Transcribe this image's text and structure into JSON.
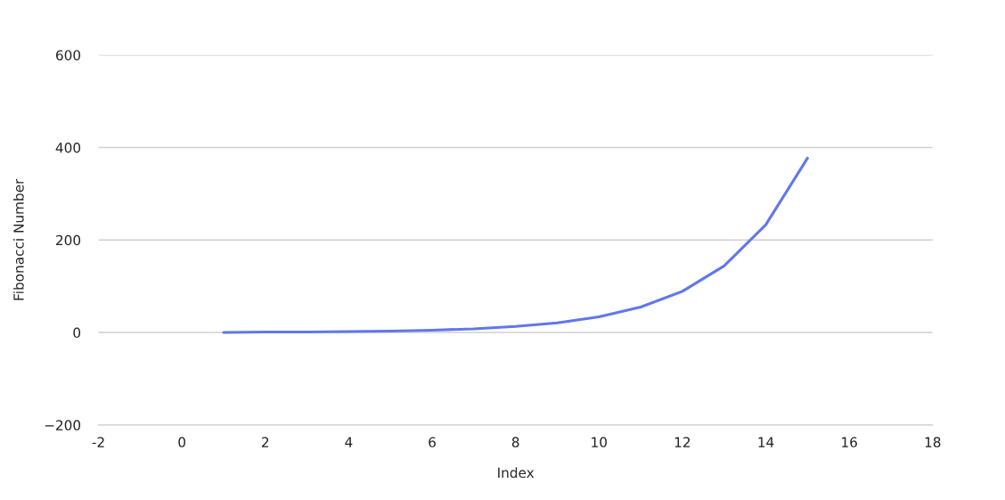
{
  "chart_data": {
    "type": "line",
    "xlabel": "Index",
    "ylabel": "Fibonacci Number",
    "x": [
      1,
      2,
      3,
      4,
      5,
      6,
      7,
      8,
      9,
      10,
      11,
      12,
      13,
      14,
      15
    ],
    "series": [
      {
        "color": "#6078ea",
        "values": [
          0,
          1,
          1,
          2,
          3,
          5,
          8,
          13,
          21,
          34,
          55,
          89,
          144,
          233,
          377
        ]
      }
    ],
    "xlim": [
      -2,
      18
    ],
    "xticks": [
      {
        "value": -2,
        "label": "-2"
      },
      0,
      2,
      4,
      6,
      8,
      10,
      12,
      14,
      16,
      18
    ],
    "ylim": [
      -200,
      600
    ],
    "yticks": [
      {
        "value": -200,
        "label": "−200"
      },
      0,
      200,
      400,
      600
    ],
    "grid": "y",
    "legend": false,
    "marker": "none",
    "line_style": "solid"
  }
}
